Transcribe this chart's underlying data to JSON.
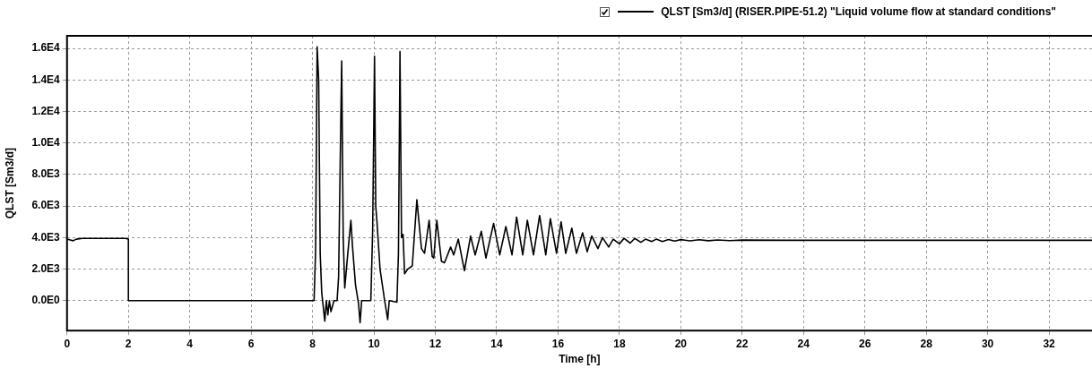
{
  "chart_data": {
    "type": "line",
    "xlabel": "Time [h]",
    "ylabel": "QLST [Sm3/d]",
    "legend": "top right",
    "grid": true,
    "marker": "none",
    "line_style": "solid",
    "xlim": [
      0,
      33.4
    ],
    "xticks": [
      0,
      2,
      4,
      6,
      8,
      10,
      12,
      14,
      16,
      18,
      20,
      22,
      24,
      26,
      28,
      30,
      32
    ],
    "ylim": [
      -1900,
      16800
    ],
    "yticks": [
      {
        "value": 0,
        "label": "0.0E0"
      },
      {
        "value": 2000,
        "label": "2.0E3"
      },
      {
        "value": 4000,
        "label": "4.0E3"
      },
      {
        "value": 6000,
        "label": "6.0E3"
      },
      {
        "value": 8000,
        "label": "8.0E3"
      },
      {
        "value": 10000,
        "label": "1.0E4"
      },
      {
        "value": 12000,
        "label": "1.2E4"
      },
      {
        "value": 14000,
        "label": "1.4E4"
      },
      {
        "value": 16000,
        "label": "1.6E4"
      }
    ],
    "series": [
      {
        "name": "QLST [Sm3/d] (RISER.PIPE-51.2) \"Liquid volume flow at standard conditions\"",
        "color": "#000000",
        "x": [
          0,
          0.1,
          0.2,
          0.3,
          0.5,
          1.0,
          1.5,
          1.9,
          2,
          2,
          4,
          6,
          8.05,
          8.1,
          8.15,
          8.2,
          8.25,
          8.3,
          8.4,
          8.45,
          8.5,
          8.55,
          8.6,
          8.7,
          8.8,
          8.85,
          8.9,
          8.95,
          9.0,
          9.05,
          9.15,
          9.25,
          9.3,
          9.4,
          9.5,
          9.55,
          9.6,
          9.9,
          9.96,
          10.02,
          10.06,
          10.1,
          10.2,
          10.35,
          10.45,
          10.5,
          10.75,
          10.8,
          10.85,
          10.9,
          10.95,
          11.0,
          11.1,
          11.25,
          11.4,
          11.55,
          11.65,
          11.8,
          11.9,
          11.95,
          12.05,
          12.2,
          12.3,
          12.5,
          12.6,
          12.75,
          12.95,
          13.15,
          13.3,
          13.5,
          13.65,
          13.9,
          14.1,
          14.3,
          14.5,
          14.65,
          14.85,
          15.0,
          15.2,
          15.4,
          15.6,
          15.75,
          15.95,
          16.1,
          16.25,
          16.45,
          16.6,
          16.8,
          16.95,
          17.1,
          17.3,
          17.45,
          17.65,
          17.8,
          18.0,
          18.15,
          18.35,
          18.5,
          18.7,
          18.85,
          19.05,
          19.2,
          19.4,
          19.6,
          19.8,
          20.0,
          20.3,
          20.6,
          20.9,
          21.2,
          21.6,
          22.0,
          23.4,
          33.4
        ],
        "values": [
          3900,
          3850,
          3800,
          3900,
          3950,
          3950,
          3950,
          3950,
          3900,
          0,
          0,
          0,
          0,
          3200,
          16100,
          14000,
          3000,
          500,
          -1300,
          0,
          -900,
          0,
          -700,
          0,
          0,
          1500,
          8500,
          15200,
          4000,
          800,
          3000,
          5100,
          3500,
          1000,
          -200,
          -1400,
          0,
          0,
          4500,
          15500,
          6000,
          5000,
          2000,
          0,
          -1200,
          0,
          -100,
          3000,
          15800,
          4000,
          4200,
          1700,
          2000,
          2200,
          6400,
          3300,
          3000,
          5100,
          2800,
          2700,
          5100,
          2500,
          2400,
          3400,
          2900,
          3900,
          1900,
          4100,
          2900,
          4400,
          2700,
          4900,
          2900,
          4700,
          2900,
          5300,
          2900,
          5100,
          2900,
          5400,
          2900,
          5200,
          3000,
          5000,
          3000,
          4600,
          3000,
          4300,
          3100,
          4100,
          3300,
          4000,
          3400,
          3900,
          3600,
          3950,
          3650,
          3950,
          3700,
          3900,
          3750,
          3900,
          3750,
          3880,
          3780,
          3870,
          3790,
          3860,
          3800,
          3850,
          3810,
          3840,
          3830,
          3830
        ]
      }
    ]
  }
}
